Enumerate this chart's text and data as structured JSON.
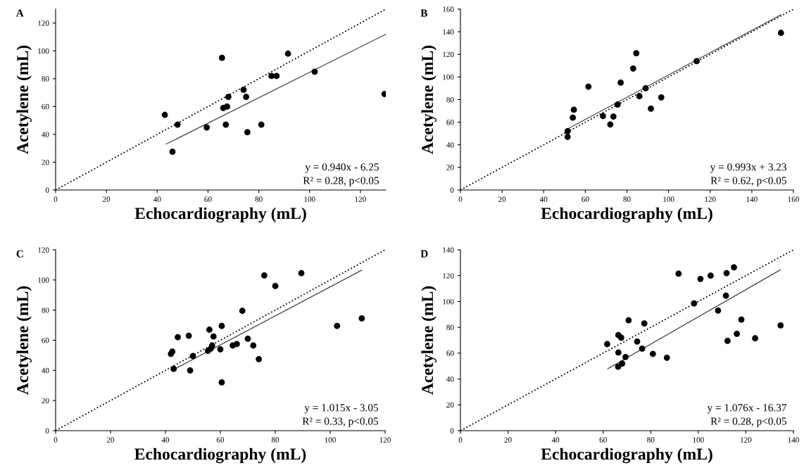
{
  "chart_data": [
    {
      "type": "scatter",
      "title": "A",
      "xlabel": "Echocardiography (mL)",
      "ylabel": "Acetylene (mL)",
      "xlim": [
        0,
        130
      ],
      "ylim": [
        0,
        130
      ],
      "xticks": [
        0,
        20,
        40,
        60,
        80,
        100,
        120
      ],
      "yticks": [
        0,
        20,
        40,
        60,
        80,
        100,
        120
      ],
      "grid": false,
      "legend": false,
      "series": [
        {
          "marker": "circle",
          "color": "#000000",
          "x": [
            43,
            46,
            48,
            59.5,
            65.5,
            66,
            67,
            67.5,
            68,
            74,
            75,
            75.5,
            81,
            85,
            87,
            91.5,
            102,
            129.5
          ],
          "values": [
            54,
            27.5,
            47,
            45,
            95,
            59,
            47,
            60,
            67,
            72,
            67,
            41.5,
            47,
            82,
            82,
            98,
            85,
            69
          ]
        },
        {
          "type": "line",
          "color": "#000000",
          "line_style": "dotted",
          "x": [
            0,
            130
          ],
          "values": [
            0,
            130
          ]
        },
        {
          "type": "line",
          "color": "#404040",
          "line_style": "solid",
          "x": [
            43.5,
            130
          ],
          "values": [
            33,
            112
          ]
        }
      ],
      "annotations": [
        "y = 0.940x - 6.25",
        "R² = 0.28, p<0.05"
      ]
    },
    {
      "type": "scatter",
      "title": "B",
      "xlabel": "Echocardiography (mL)",
      "ylabel": "Acetylene (mL)",
      "xlim": [
        0,
        160
      ],
      "ylim": [
        0,
        160
      ],
      "xticks": [
        0,
        20,
        40,
        60,
        80,
        100,
        120,
        140,
        160
      ],
      "yticks": [
        0,
        20,
        40,
        60,
        80,
        100,
        120,
        140,
        160
      ],
      "grid": false,
      "legend": false,
      "series": [
        {
          "marker": "circle",
          "color": "#000000",
          "x": [
            51.5,
            51.5,
            54,
            54.5,
            61.5,
            68.5,
            72,
            73.5,
            75.5,
            77,
            83,
            84.5,
            86,
            89,
            91.5,
            96.5,
            113.5,
            154
          ],
          "values": [
            52,
            47,
            64,
            71,
            91.5,
            65.5,
            58,
            65,
            75.5,
            95,
            107.5,
            121,
            83,
            90,
            72,
            82,
            114,
            139
          ]
        },
        {
          "type": "line",
          "color": "#000000",
          "line_style": "dotted",
          "x": [
            0,
            160
          ],
          "values": [
            0,
            160
          ]
        },
        {
          "type": "line",
          "color": "#404040",
          "line_style": "solid",
          "x": [
            51.5,
            154
          ],
          "values": [
            54,
            155
          ]
        }
      ],
      "annotations": [
        "y = 0.993x + 3.23",
        "R² = 0.62, p<0.05"
      ]
    },
    {
      "type": "scatter",
      "title": "C",
      "xlabel": "Echocardiography (mL)",
      "ylabel": "Acetylene (mL)",
      "xlim": [
        0,
        120
      ],
      "ylim": [
        0,
        120
      ],
      "xticks": [
        0,
        20,
        40,
        60,
        80,
        100,
        120
      ],
      "yticks": [
        0,
        20,
        40,
        60,
        80,
        100,
        120
      ],
      "grid": false,
      "legend": false,
      "series": [
        {
          "marker": "circle",
          "color": "#000000",
          "x": [
            42,
            42.5,
            43,
            44.5,
            48.5,
            49,
            50,
            55.5,
            56,
            56.5,
            57,
            57.5,
            60,
            60.5,
            60.5,
            64.5,
            66,
            68,
            70,
            72,
            74,
            76,
            80,
            89.5,
            102.5,
            111.5
          ],
          "values": [
            51,
            52.5,
            41,
            62,
            63,
            40,
            49.5,
            53,
            67,
            54.5,
            56.5,
            62.5,
            54,
            32,
            69.5,
            56.5,
            57.5,
            79.5,
            61,
            56.5,
            47.5,
            103,
            96,
            104.5,
            69.5,
            74.5
          ]
        },
        {
          "type": "line",
          "color": "#000000",
          "line_style": "dotted",
          "x": [
            0,
            120
          ],
          "values": [
            0,
            120
          ]
        },
        {
          "type": "line",
          "color": "#404040",
          "line_style": "solid",
          "x": [
            44,
            111.5
          ],
          "values": [
            41.5,
            106.5
          ]
        }
      ],
      "annotations": [
        "y = 1.015x - 3.05",
        "R² = 0.33, p<0.05"
      ]
    },
    {
      "type": "scatter",
      "title": "D",
      "xlabel": "Echocardiography (mL)",
      "ylabel": "Acetylene (mL)",
      "xlim": [
        0,
        140
      ],
      "ylim": [
        0,
        140
      ],
      "xticks": [
        0,
        20,
        40,
        60,
        80,
        100,
        120,
        140
      ],
      "yticks": [
        0,
        20,
        40,
        60,
        80,
        100,
        120,
        140
      ],
      "grid": false,
      "legend": false,
      "series": [
        {
          "marker": "circle",
          "color": "#000000",
          "x": [
            61.7,
            66.4,
            67.6,
            66.4,
            69.4,
            66.3,
            68,
            70.7,
            74.3,
            76.4,
            77.3,
            80.9,
            86.8,
            91.7,
            98.2,
            100.9,
            105.2,
            108.3,
            111.6,
            111.9,
            112.3,
            115,
            116.2,
            118.1,
            123.9,
            134.6
          ],
          "values": [
            67,
            74,
            72,
            60.5,
            57,
            49.5,
            52,
            85.5,
            69,
            63.5,
            83,
            59.5,
            56.5,
            121.5,
            98.5,
            117.5,
            120,
            93,
            104.5,
            122,
            69.5,
            126.5,
            75,
            86,
            71.5,
            81.5
          ]
        },
        {
          "type": "line",
          "color": "#000000",
          "line_style": "dotted",
          "x": [
            0,
            140
          ],
          "values": [
            0,
            140
          ]
        },
        {
          "type": "line",
          "color": "#404040",
          "line_style": "solid",
          "x": [
            62,
            134.5
          ],
          "values": [
            48,
            124.5
          ]
        }
      ],
      "annotations": [
        "y = 1.076x - 16.37",
        "R² = 0.28, p<0.05"
      ]
    }
  ]
}
